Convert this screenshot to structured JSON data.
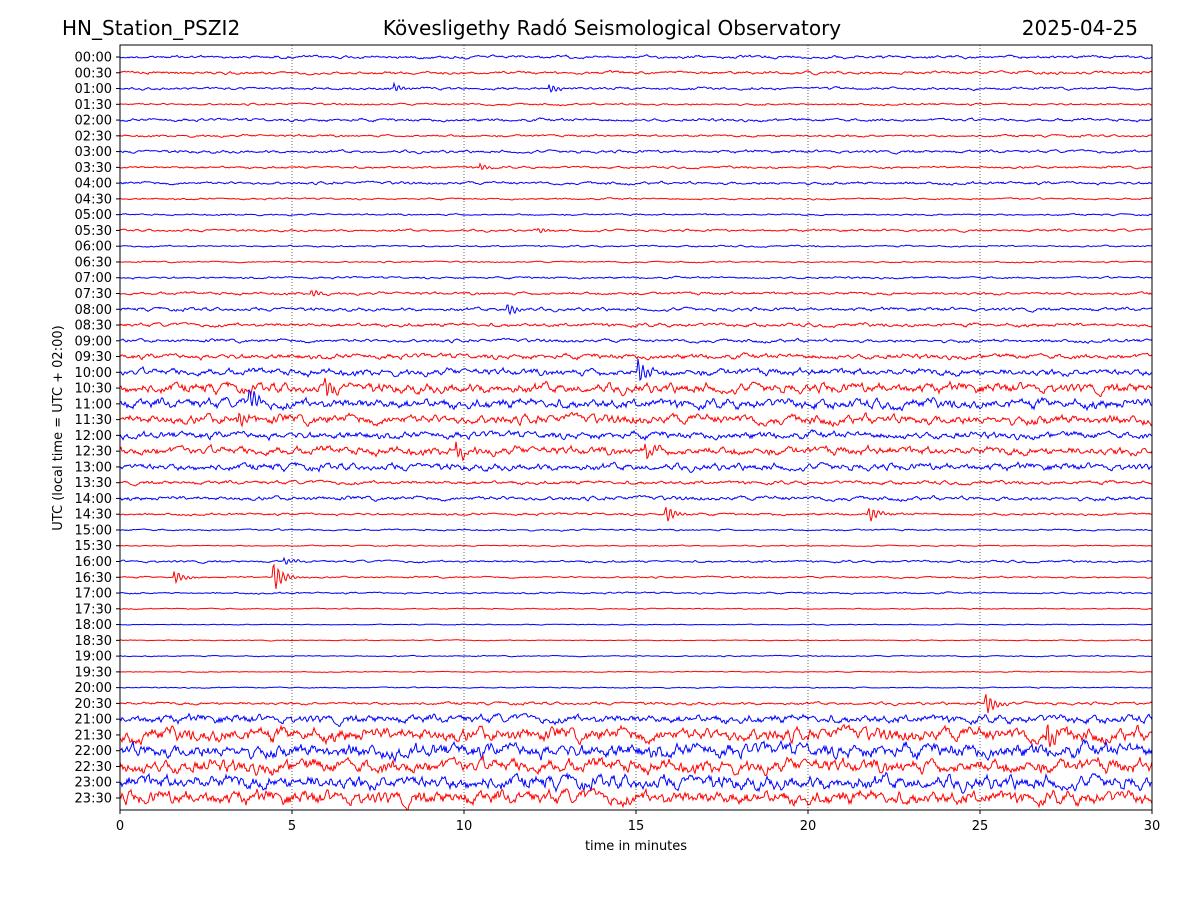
{
  "header": {
    "station": "HN_Station_PSZI2",
    "observatory": "Kövesligethy Radó Seismological Observatory",
    "date": "2025-04-25"
  },
  "chart_data": {
    "type": "line",
    "title": "Kövesligethy Radó Seismological Observatory",
    "xlabel": "time in minutes",
    "ylabel": "UTC (local time = UTC + 02:00)",
    "xlim": [
      0,
      30
    ],
    "xticks": [
      0,
      5,
      10,
      15,
      20,
      25,
      30
    ],
    "grid": "vertical dotted at 5-minute ticks",
    "colors": {
      "even_rows": "#0000ff",
      "odd_rows": "#ff0000"
    },
    "rows": [
      {
        "label": "00:00",
        "noise": 1.0
      },
      {
        "label": "00:30",
        "noise": 1.0
      },
      {
        "label": "01:00",
        "noise": 0.9
      },
      {
        "label": "01:30",
        "noise": 0.7
      },
      {
        "label": "02:00",
        "noise": 1.0
      },
      {
        "label": "02:30",
        "noise": 0.8
      },
      {
        "label": "03:00",
        "noise": 1.0
      },
      {
        "label": "03:30",
        "noise": 0.8
      },
      {
        "label": "04:00",
        "noise": 1.0
      },
      {
        "label": "04:30",
        "noise": 0.6
      },
      {
        "label": "05:00",
        "noise": 0.6
      },
      {
        "label": "05:30",
        "noise": 0.8
      },
      {
        "label": "06:00",
        "noise": 0.6
      },
      {
        "label": "06:30",
        "noise": 0.5
      },
      {
        "label": "07:00",
        "noise": 0.7
      },
      {
        "label": "07:30",
        "noise": 1.0
      },
      {
        "label": "08:00",
        "noise": 1.2
      },
      {
        "label": "08:30",
        "noise": 1.3
      },
      {
        "label": "09:00",
        "noise": 1.2
      },
      {
        "label": "09:30",
        "noise": 1.8
      },
      {
        "label": "10:00",
        "noise": 2.5
      },
      {
        "label": "10:30",
        "noise": 3.5
      },
      {
        "label": "11:00",
        "noise": 3.5
      },
      {
        "label": "11:30",
        "noise": 3.5
      },
      {
        "label": "12:00",
        "noise": 2.5
      },
      {
        "label": "12:30",
        "noise": 3.0
      },
      {
        "label": "13:00",
        "noise": 2.5
      },
      {
        "label": "13:30",
        "noise": 1.3
      },
      {
        "label": "14:00",
        "noise": 1.5
      },
      {
        "label": "14:30",
        "noise": 0.8
      },
      {
        "label": "15:00",
        "noise": 0.6
      },
      {
        "label": "15:30",
        "noise": 0.4
      },
      {
        "label": "16:00",
        "noise": 0.8
      },
      {
        "label": "16:30",
        "noise": 0.6
      },
      {
        "label": "17:00",
        "noise": 0.6
      },
      {
        "label": "17:30",
        "noise": 0.4
      },
      {
        "label": "18:00",
        "noise": 0.3
      },
      {
        "label": "18:30",
        "noise": 0.3
      },
      {
        "label": "19:00",
        "noise": 0.4
      },
      {
        "label": "19:30",
        "noise": 0.3
      },
      {
        "label": "20:00",
        "noise": 0.4
      },
      {
        "label": "20:30",
        "noise": 1.0
      },
      {
        "label": "21:00",
        "noise": 3.0
      },
      {
        "label": "21:30",
        "noise": 5.0
      },
      {
        "label": "22:00",
        "noise": 5.0
      },
      {
        "label": "22:30",
        "noise": 5.0
      },
      {
        "label": "23:00",
        "noise": 5.0
      },
      {
        "label": "23:30",
        "noise": 5.0
      }
    ],
    "events": [
      {
        "row": "01:00",
        "minute": 8.0,
        "amp": 4
      },
      {
        "row": "01:00",
        "minute": 12.5,
        "amp": 4
      },
      {
        "row": "03:30",
        "minute": 10.5,
        "amp": 3
      },
      {
        "row": "05:30",
        "minute": 12.2,
        "amp": 3
      },
      {
        "row": "07:30",
        "minute": 5.6,
        "amp": 4
      },
      {
        "row": "08:00",
        "minute": 11.3,
        "amp": 6
      },
      {
        "row": "10:00",
        "minute": 15.1,
        "amp": 12
      },
      {
        "row": "10:30",
        "minute": 6.0,
        "amp": 8
      },
      {
        "row": "11:00",
        "minute": 3.8,
        "amp": 10
      },
      {
        "row": "11:30",
        "minute": 3.5,
        "amp": 8
      },
      {
        "row": "12:30",
        "minute": 9.8,
        "amp": 8
      },
      {
        "row": "12:30",
        "minute": 15.3,
        "amp": 8
      },
      {
        "row": "14:30",
        "minute": 15.9,
        "amp": 8
      },
      {
        "row": "14:30",
        "minute": 21.8,
        "amp": 7
      },
      {
        "row": "16:00",
        "minute": 4.8,
        "amp": 3
      },
      {
        "row": "16:30",
        "minute": 1.6,
        "amp": 6
      },
      {
        "row": "16:30",
        "minute": 4.5,
        "amp": 14
      },
      {
        "row": "20:30",
        "minute": 25.2,
        "amp": 10
      },
      {
        "row": "21:30",
        "minute": 27.0,
        "amp": 12
      }
    ]
  }
}
